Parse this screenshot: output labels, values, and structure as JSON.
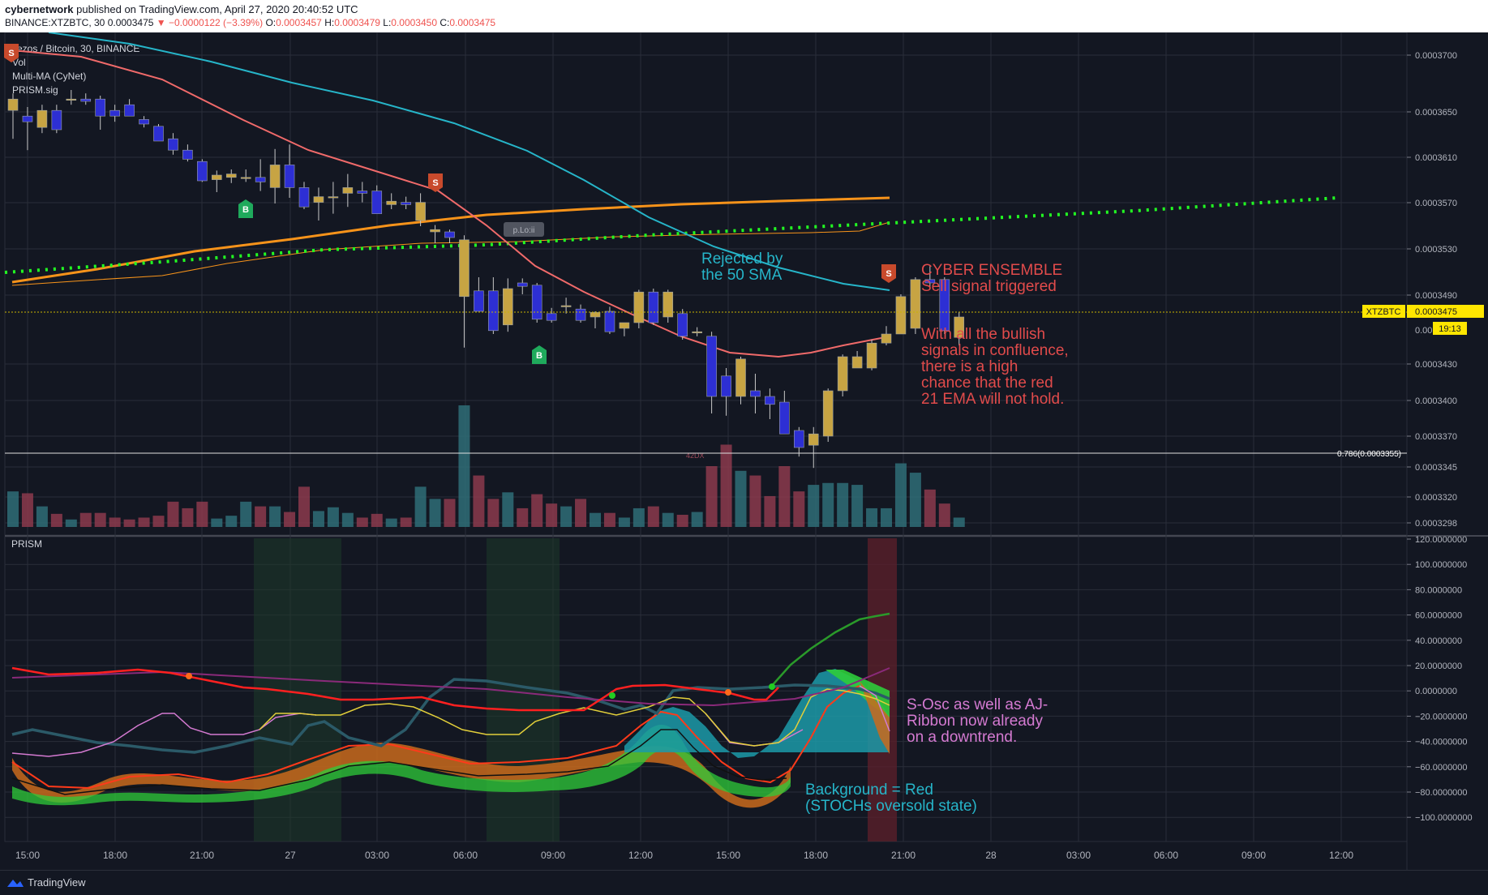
{
  "header": {
    "author": "cybernetwork",
    "published": "published on TradingView.com, April 27, 2020 20:40:52 UTC",
    "symbol": "BINANCE:XTZBTC, 30",
    "last": "0.0003475",
    "change": "▼ −0.0000122 (−3.39%)",
    "o_label": "O:",
    "o": "0.0003457",
    "h_label": "H:",
    "h": "0.0003479",
    "l_label": "L:",
    "l": "0.0003450",
    "c_label": "C:",
    "c": "0.0003475"
  },
  "footer": {
    "brand": "TradingView"
  },
  "legend": [
    "Tezos / Bitcoin, 30, BINANCE",
    "Vol",
    "Multi-MA (CyNet)",
    "PRISM.sig"
  ],
  "colors": {
    "bg": "#131722",
    "grid": "#2a2e39",
    "bull": "#c7a443",
    "bear": "#2d2fd4",
    "sma50": "#26b5c9",
    "ema21": "#f06a6a",
    "ma_orange": "#f7931a",
    "dots": "#22ff22",
    "vol_red": "#8c3a4c",
    "vol_teal": "#2f6d77"
  },
  "price_pane": {
    "name": "price",
    "y_ticks": [
      "0.0003700",
      "0.0003650",
      "0.0003610",
      "0.0003570",
      "0.0003530",
      "0.0003490",
      "0.0003430",
      "0.0003400",
      "0.0003370",
      "0.0003345",
      "0.0003320",
      "0.0003298"
    ],
    "price_tag": "0.0003475",
    "price_tag_symbol": "XTZBTC",
    "countdown": "19:13",
    "fib_label": "0.786(0.0003355)",
    "partial_tick": "0.00",
    "vol_label": "42DX"
  },
  "prism_pane": {
    "title": "PRISM",
    "y_ticks": [
      "120.0000000",
      "100.0000000",
      "80.0000000",
      "60.0000000",
      "40.0000000",
      "20.0000000",
      "0.0000000",
      "−20.0000000",
      "−40.0000000",
      "−60.0000000",
      "−80.0000000",
      "−100.0000000"
    ]
  },
  "x_axis": {
    "ticks": [
      "15:00",
      "18:00",
      "21:00",
      "27",
      "03:00",
      "06:00",
      "09:00",
      "12:00",
      "15:00",
      "18:00",
      "21:00",
      "28",
      "03:00",
      "06:00",
      "09:00",
      "12:00"
    ]
  },
  "annotations": {
    "rejected": [
      "Rejected by",
      "the 50 SMA"
    ],
    "cyber": [
      "CYBER ENSEMBLE",
      "Sell signal triggered"
    ],
    "bullish": [
      "With all the bullish",
      "signals in confluence,",
      "there is a high",
      "chance that the red",
      "21 EMA will not hold."
    ],
    "sosc": [
      "S-Osc as well as AJ-",
      "Ribbon now already",
      "on a downtrend."
    ],
    "background": [
      "Background = Red",
      "(STOCHs oversold state)"
    ],
    "pivot": "p.Lo:ii"
  },
  "signals": [
    {
      "type": "S",
      "label": "S"
    },
    {
      "type": "B",
      "label": "B"
    },
    {
      "type": "S",
      "label": "S"
    },
    {
      "type": "B",
      "label": "B"
    },
    {
      "type": "S",
      "label": "S"
    }
  ],
  "chart_data": {
    "type": "candlestick",
    "title": "Tezos / Bitcoin, 30, BINANCE",
    "interval": "30",
    "ylim": [
      0.000329,
      0.000372
    ],
    "candles": [
      {
        "o": 0.0003657,
        "h": 0.0003672,
        "l": 0.0003632,
        "c": 0.0003667,
        "v": 38
      },
      {
        "o": 0.0003652,
        "h": 0.000366,
        "l": 0.0003622,
        "c": 0.0003647,
        "v": 36
      },
      {
        "o": 0.0003642,
        "h": 0.0003662,
        "l": 0.0003637,
        "c": 0.0003657,
        "v": 22
      },
      {
        "o": 0.0003657,
        "h": 0.0003662,
        "l": 0.0003637,
        "c": 0.000364,
        "v": 14
      },
      {
        "o": 0.0003667,
        "h": 0.0003675,
        "l": 0.0003662,
        "c": 0.0003667,
        "v": 8
      },
      {
        "o": 0.0003667,
        "h": 0.0003672,
        "l": 0.0003662,
        "c": 0.0003665,
        "v": 15
      },
      {
        "o": 0.0003667,
        "h": 0.000367,
        "l": 0.000364,
        "c": 0.0003652,
        "v": 15
      },
      {
        "o": 0.0003657,
        "h": 0.0003662,
        "l": 0.0003647,
        "c": 0.0003652,
        "v": 10
      },
      {
        "o": 0.0003662,
        "h": 0.0003667,
        "l": 0.0003652,
        "c": 0.0003652,
        "v": 8
      },
      {
        "o": 0.0003649,
        "h": 0.0003652,
        "l": 0.0003642,
        "c": 0.0003645,
        "v": 10
      },
      {
        "o": 0.0003643,
        "h": 0.0003645,
        "l": 0.000363,
        "c": 0.000363,
        "v": 12
      },
      {
        "o": 0.0003632,
        "h": 0.0003637,
        "l": 0.0003618,
        "c": 0.0003622,
        "v": 27
      },
      {
        "o": 0.0003622,
        "h": 0.0003627,
        "l": 0.0003612,
        "c": 0.0003614,
        "v": 20
      },
      {
        "o": 0.0003612,
        "h": 0.0003614,
        "l": 0.0003594,
        "c": 0.0003595,
        "v": 27
      },
      {
        "o": 0.0003596,
        "h": 0.0003604,
        "l": 0.0003585,
        "c": 0.00036,
        "v": 9
      },
      {
        "o": 0.0003598,
        "h": 0.0003605,
        "l": 0.0003593,
        "c": 0.0003601,
        "v": 12
      },
      {
        "o": 0.0003598,
        "h": 0.0003605,
        "l": 0.0003594,
        "c": 0.0003598,
        "v": 27
      },
      {
        "o": 0.0003598,
        "h": 0.0003614,
        "l": 0.0003586,
        "c": 0.0003594,
        "v": 22
      },
      {
        "o": 0.0003589,
        "h": 0.0003623,
        "l": 0.0003575,
        "c": 0.0003609,
        "v": 22
      },
      {
        "o": 0.0003609,
        "h": 0.0003627,
        "l": 0.000358,
        "c": 0.0003589,
        "v": 16
      },
      {
        "o": 0.0003589,
        "h": 0.0003594,
        "l": 0.000357,
        "c": 0.0003572,
        "v": 43
      },
      {
        "o": 0.0003576,
        "h": 0.0003589,
        "l": 0.000356,
        "c": 0.0003581,
        "v": 17
      },
      {
        "o": 0.0003581,
        "h": 0.0003594,
        "l": 0.0003566,
        "c": 0.0003581,
        "v": 21
      },
      {
        "o": 0.0003584,
        "h": 0.0003601,
        "l": 0.0003572,
        "c": 0.0003589,
        "v": 15
      },
      {
        "o": 0.0003586,
        "h": 0.0003594,
        "l": 0.0003576,
        "c": 0.0003584,
        "v": 10
      },
      {
        "o": 0.0003586,
        "h": 0.0003591,
        "l": 0.000357,
        "c": 0.0003566,
        "v": 14
      },
      {
        "o": 0.0003574,
        "h": 0.0003584,
        "l": 0.000357,
        "c": 0.0003577,
        "v": 9
      },
      {
        "o": 0.0003576,
        "h": 0.0003581,
        "l": 0.000357,
        "c": 0.0003574,
        "v": 10
      },
      {
        "o": 0.000356,
        "h": 0.0003584,
        "l": 0.0003555,
        "c": 0.0003576,
        "v": 43
      },
      {
        "o": 0.000355,
        "h": 0.0003556,
        "l": 0.000354,
        "c": 0.0003552,
        "v": 30
      },
      {
        "o": 0.000355,
        "h": 0.0003552,
        "l": 0.000354,
        "c": 0.0003545,
        "v": 30
      },
      {
        "o": 0.0003493,
        "h": 0.0003547,
        "l": 0.0003448,
        "c": 0.0003543,
        "v": 130
      },
      {
        "o": 0.0003498,
        "h": 0.000351,
        "l": 0.000348,
        "c": 0.000348,
        "v": 55
      },
      {
        "o": 0.0003498,
        "h": 0.000351,
        "l": 0.000346,
        "c": 0.0003463,
        "v": 30
      },
      {
        "o": 0.0003468,
        "h": 0.0003509,
        "l": 0.0003462,
        "c": 0.00035,
        "v": 37
      },
      {
        "o": 0.0003505,
        "h": 0.0003509,
        "l": 0.0003495,
        "c": 0.0003502,
        "v": 20
      },
      {
        "o": 0.0003503,
        "h": 0.0003505,
        "l": 0.000347,
        "c": 0.0003473,
        "v": 35
      },
      {
        "o": 0.0003478,
        "h": 0.0003483,
        "l": 0.000347,
        "c": 0.0003472,
        "v": 25
      },
      {
        "o": 0.0003485,
        "h": 0.0003492,
        "l": 0.0003478,
        "c": 0.0003485,
        "v": 22
      },
      {
        "o": 0.0003482,
        "h": 0.0003486,
        "l": 0.000347,
        "c": 0.0003472,
        "v": 30
      },
      {
        "o": 0.0003475,
        "h": 0.000348,
        "l": 0.0003465,
        "c": 0.0003479,
        "v": 15
      },
      {
        "o": 0.000348,
        "h": 0.0003484,
        "l": 0.000346,
        "c": 0.0003462,
        "v": 15
      },
      {
        "o": 0.0003465,
        "h": 0.000347,
        "l": 0.0003458,
        "c": 0.000347,
        "v": 10
      },
      {
        "o": 0.000347,
        "h": 0.0003499,
        "l": 0.0003465,
        "c": 0.0003497,
        "v": 20
      },
      {
        "o": 0.0003497,
        "h": 0.00035,
        "l": 0.0003468,
        "c": 0.000347,
        "v": 22
      },
      {
        "o": 0.0003475,
        "h": 0.0003499,
        "l": 0.000347,
        "c": 0.0003497,
        "v": 15
      },
      {
        "o": 0.0003478,
        "h": 0.0003482,
        "l": 0.0003455,
        "c": 0.0003458,
        "v": 13
      },
      {
        "o": 0.0003462,
        "h": 0.0003466,
        "l": 0.0003458,
        "c": 0.0003462,
        "v": 16
      },
      {
        "o": 0.0003458,
        "h": 0.0003462,
        "l": 0.000339,
        "c": 0.0003405,
        "v": 65
      },
      {
        "o": 0.0003423,
        "h": 0.000343,
        "l": 0.0003388,
        "c": 0.0003405,
        "v": 88
      },
      {
        "o": 0.0003405,
        "h": 0.000344,
        "l": 0.0003398,
        "c": 0.0003438,
        "v": 60
      },
      {
        "o": 0.000341,
        "h": 0.0003425,
        "l": 0.000339,
        "c": 0.0003405,
        "v": 55
      },
      {
        "o": 0.0003405,
        "h": 0.0003412,
        "l": 0.0003385,
        "c": 0.0003398,
        "v": 33
      },
      {
        "o": 0.00034,
        "h": 0.000341,
        "l": 0.0003372,
        "c": 0.0003372,
        "v": 65
      },
      {
        "o": 0.0003375,
        "h": 0.0003378,
        "l": 0.0003352,
        "c": 0.000336,
        "v": 38
      },
      {
        "o": 0.0003362,
        "h": 0.0003378,
        "l": 0.0003342,
        "c": 0.0003372,
        "v": 45
      },
      {
        "o": 0.000337,
        "h": 0.0003412,
        "l": 0.0003365,
        "c": 0.000341,
        "v": 47
      },
      {
        "o": 0.000341,
        "h": 0.0003442,
        "l": 0.0003405,
        "c": 0.000344,
        "v": 47
      },
      {
        "o": 0.000343,
        "h": 0.0003445,
        "l": 0.000343,
        "c": 0.000344,
        "v": 45
      },
      {
        "o": 0.000343,
        "h": 0.0003455,
        "l": 0.0003428,
        "c": 0.0003452,
        "v": 20
      },
      {
        "o": 0.0003452,
        "h": 0.0003467,
        "l": 0.000345,
        "c": 0.000346,
        "v": 20
      },
      {
        "o": 0.000346,
        "h": 0.0003495,
        "l": 0.000346,
        "c": 0.0003493,
        "v": 68
      },
      {
        "o": 0.0003465,
        "h": 0.000351,
        "l": 0.000346,
        "c": 0.0003508,
        "v": 58
      },
      {
        "o": 0.0003508,
        "h": 0.000352,
        "l": 0.00035,
        "c": 0.0003505,
        "v": 40
      },
      {
        "o": 0.0003508,
        "h": 0.000351,
        "l": 0.000346,
        "c": 0.0003463,
        "v": 25
      },
      {
        "o": 0.0003457,
        "h": 0.0003479,
        "l": 0.000345,
        "c": 0.0003475,
        "v": 10
      }
    ]
  }
}
